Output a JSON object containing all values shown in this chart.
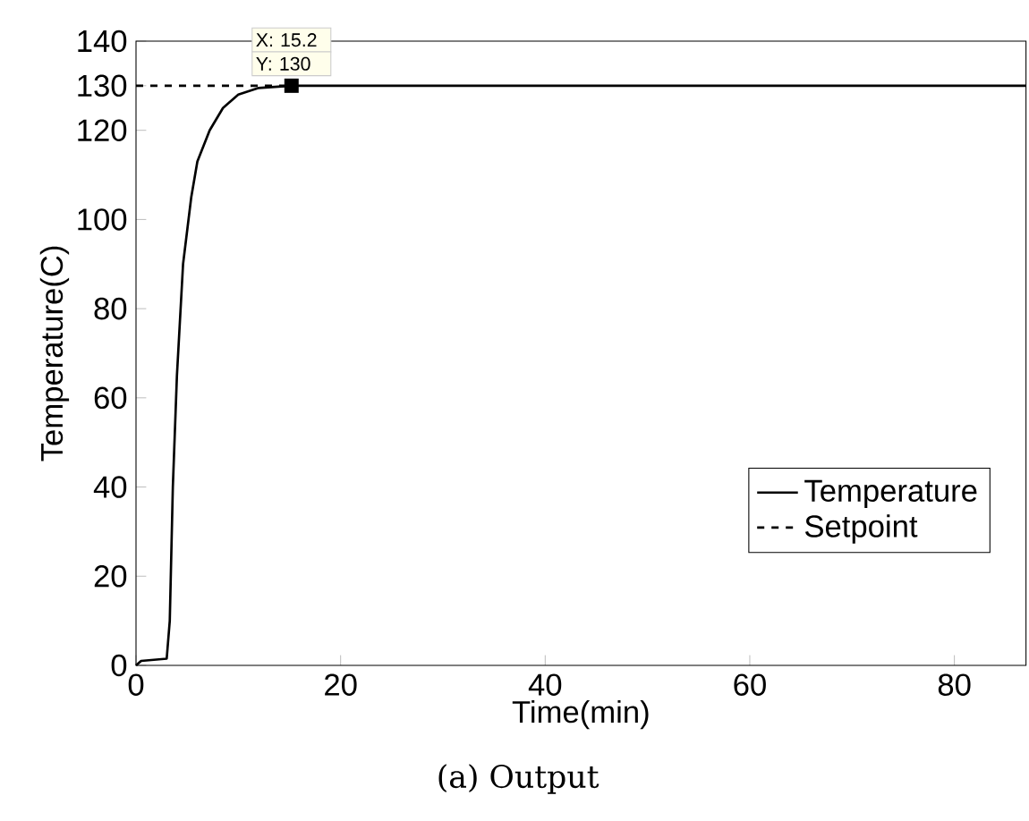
{
  "chart_data": {
    "type": "line",
    "xlabel": "Time(min)",
    "ylabel": "Temperature(C)",
    "xlim": [
      0,
      87
    ],
    "ylim": [
      0,
      140
    ],
    "xticks": [
      0,
      20,
      40,
      60,
      80
    ],
    "yticks": [
      0,
      20,
      40,
      60,
      80,
      100,
      120,
      130,
      140
    ],
    "grid": false,
    "legend": "right",
    "marker": "none",
    "series": [
      {
        "name": "Temperature",
        "color": "#000000",
        "line_style": "solid",
        "x": [
          0,
          0.5,
          3,
          3.3,
          3.6,
          4,
          4.6,
          5.4,
          6,
          7.2,
          8.5,
          10,
          12,
          15.2,
          87
        ],
        "values": [
          0,
          1,
          1.5,
          10,
          40,
          65,
          90,
          105,
          113,
          120,
          125,
          128,
          129.5,
          130,
          130
        ]
      },
      {
        "name": "Setpoint",
        "color": "#000000",
        "line_style": "dashed",
        "x": [
          0,
          15.2
        ],
        "values": [
          130,
          130
        ]
      }
    ],
    "annotations": [
      {
        "text": "X: 15.2",
        "x": 15.2,
        "y": 130
      },
      {
        "text": "Y: 130",
        "x": 15.2,
        "y": 130
      },
      "(a) Output"
    ]
  }
}
